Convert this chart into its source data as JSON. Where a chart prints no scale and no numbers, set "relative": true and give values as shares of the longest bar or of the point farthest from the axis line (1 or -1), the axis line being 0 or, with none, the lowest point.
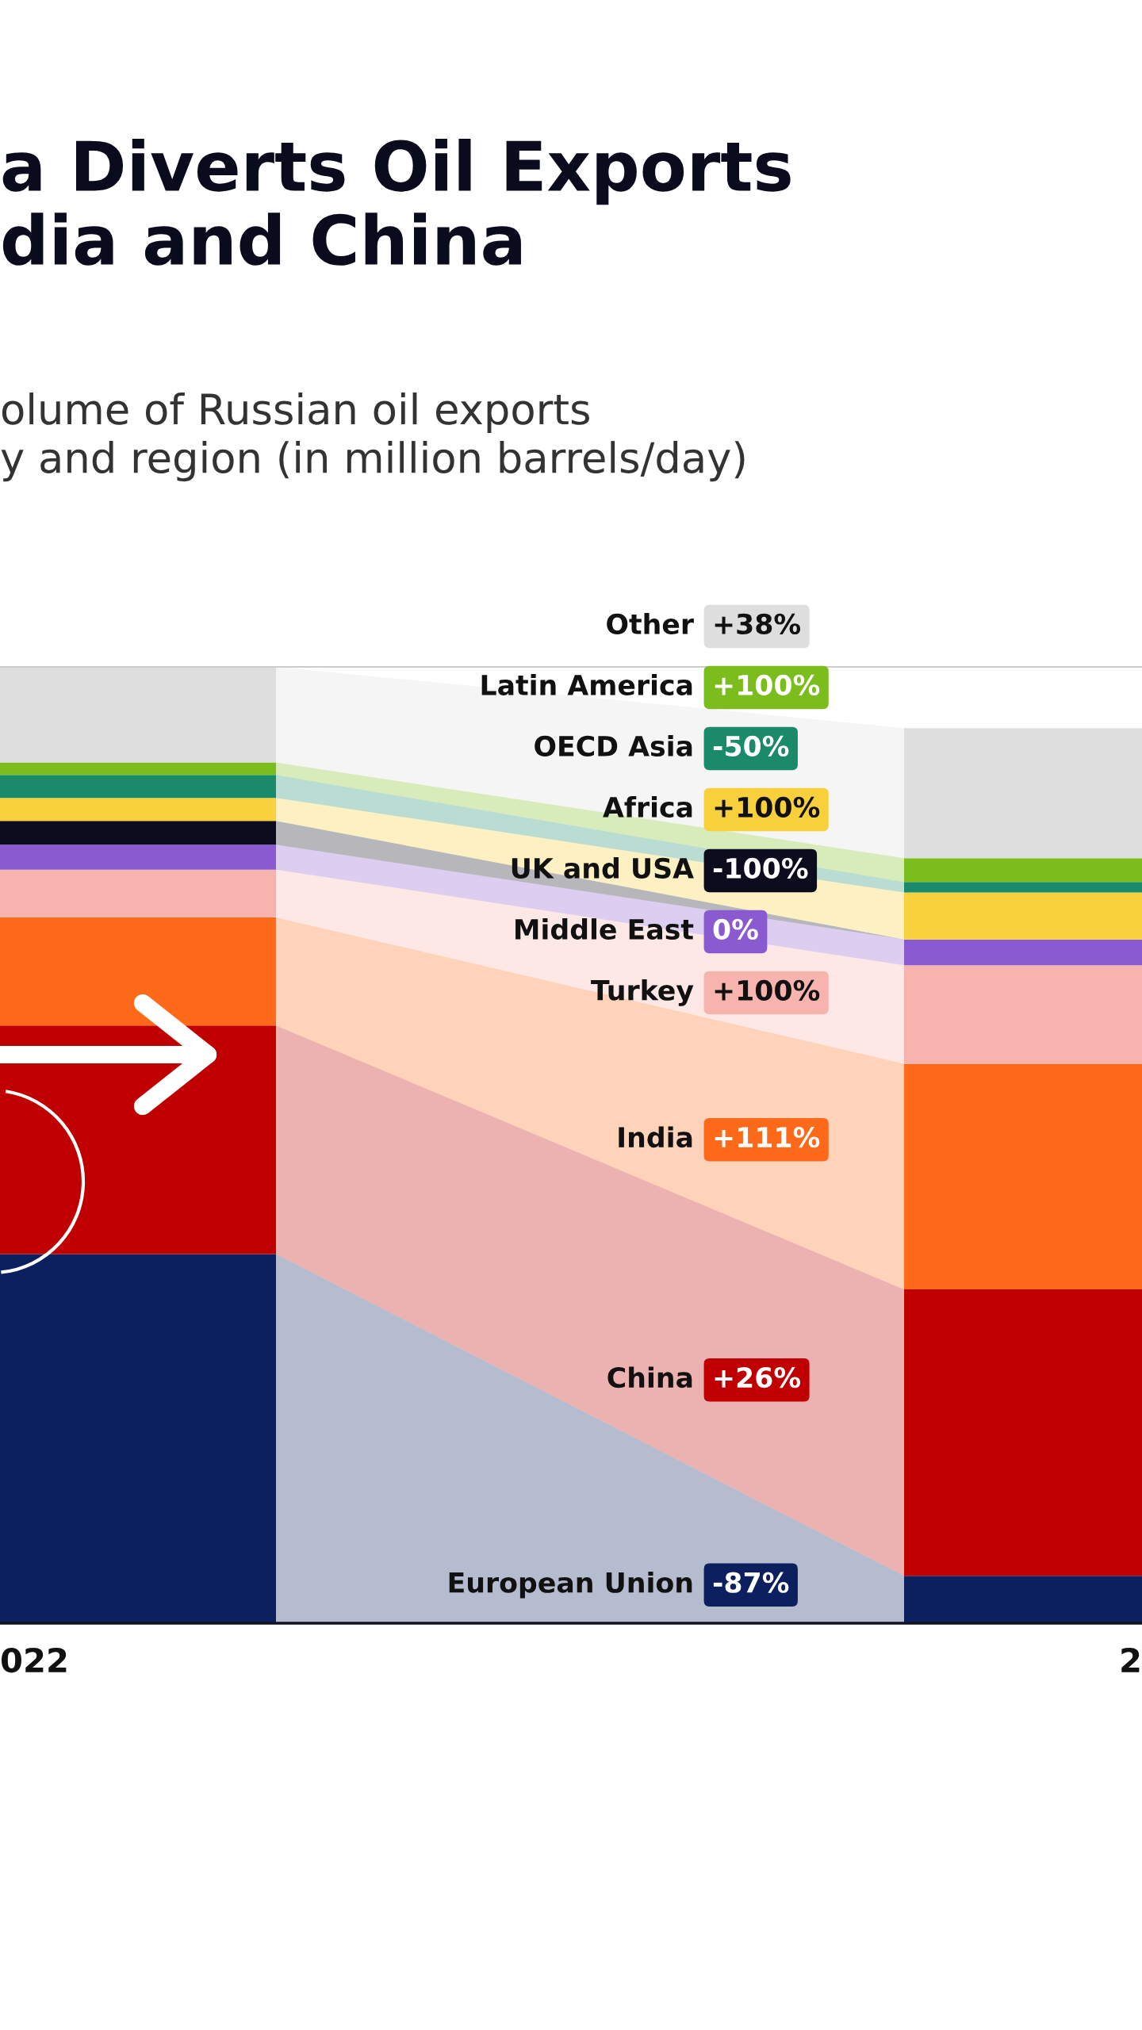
{
  "chart_data": {
    "type": "bar",
    "stacked": true,
    "relative": true,
    "title": "a Diverts Oil Exports\ndia and China",
    "subtitle": "olume of Russian oil exports\ny and region (in million barrels/day)",
    "categories": [
      "022",
      "2"
    ],
    "series": [
      {
        "name": "European Union",
        "color": "#0c2060",
        "values": [
          0.386,
          0.0495
        ]
      },
      {
        "name": "China",
        "color": "#c00000",
        "values": [
          0.239,
          0.2995
        ]
      },
      {
        "name": "India",
        "color": "#ff6a1a",
        "values": [
          0.113,
          0.236
        ]
      },
      {
        "name": "Turkey",
        "color": "#f7b3ad",
        "values": [
          0.05,
          0.103
        ]
      },
      {
        "name": "Middle East",
        "color": "#8a5ad1",
        "values": [
          0.026,
          0.027
        ]
      },
      {
        "name": "UK and USA",
        "color": "#0c0c1e",
        "values": [
          0.025,
          0
        ]
      },
      {
        "name": "Africa",
        "color": "#f7d03c",
        "values": [
          0.024,
          0.049
        ]
      },
      {
        "name": "OECD Asia",
        "color": "#1b8a6b",
        "values": [
          0.024,
          0.011
        ]
      },
      {
        "name": "Latin America",
        "color": "#7cbd1e",
        "values": [
          0.013,
          0.025
        ]
      },
      {
        "name": "Other",
        "color": "#dedede",
        "values": [
          0.1,
          0.136
        ]
      }
    ],
    "annotations": [
      "-87%",
      "+26%",
      "+111%",
      "+100%",
      "0%",
      "-100%",
      "+100%",
      "-50%",
      "+100%",
      "+38%"
    ],
    "legend": "center"
  }
}
